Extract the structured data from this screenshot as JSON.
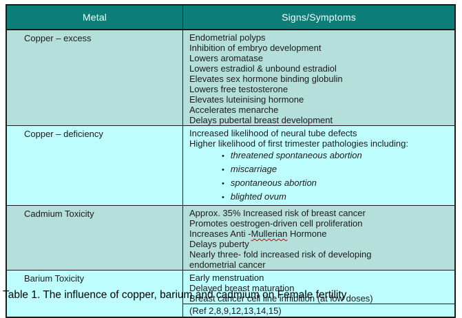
{
  "table": {
    "headers": [
      "Metal",
      "Signs/Symptoms"
    ],
    "rows": [
      {
        "metal": "Copper – excess",
        "symptoms": [
          "Endometrial polyps",
          "Inhibition of embryo development",
          "Lowers aromatase",
          "Lowers estradiol & unbound estradiol",
          "Elevates sex hormone binding globulin",
          "Lowers free testosterone",
          "Elevates luteinising hormone",
          "Accelerates menarche",
          "Delays pubertal breast development"
        ]
      },
      {
        "metal": "Copper – deficiency",
        "symptoms": [
          "Increased likelihood of neural tube defects",
          "Higher likelihood of first trimester pathologies including:"
        ],
        "bullets": [
          "threatened spontaneous abortion",
          "miscarriage",
          "spontaneous abortion",
          "blighted ovum"
        ]
      },
      {
        "metal": "Cadmium Toxicity",
        "symptoms": [
          "Approx. 35% Increased risk of breast cancer",
          "Promotes oestrogen-driven cell proliferation",
          "Increases Anti -Mullerian Hormone",
          "Delays puberty",
          "Nearly three- fold increased risk of developing",
          "endometrial cancer"
        ],
        "misspelled_word": "Mullerian"
      },
      {
        "metal": "Barium Toxicity",
        "symptoms": [
          "Early menstruation",
          "Delayed breast maturation",
          "Breast cancer cell line inhibition (at low doses)"
        ],
        "ref": "(Ref 2,8,9,12,13,14,15)"
      }
    ]
  },
  "caption": "Table 1. The influence of copper, barium and cadmium on Female fertility",
  "colors": {
    "header_bg": "#0E7E79",
    "header_text": "#FFFFFF",
    "row_mint": "#B5DFDB",
    "row_cyan": "#BDFDFE",
    "border": "#1A1A1A",
    "misspell_underline": "#C00000"
  }
}
